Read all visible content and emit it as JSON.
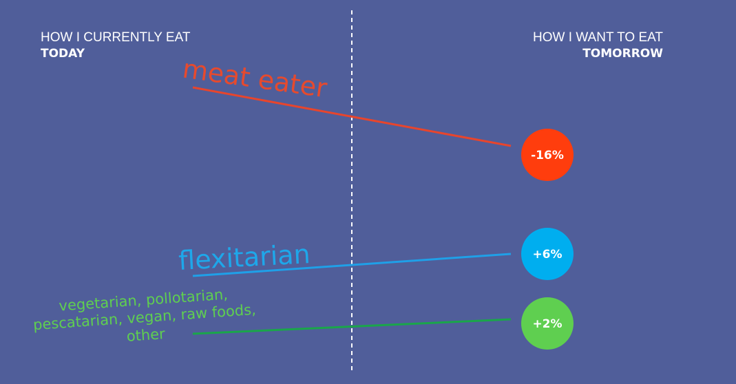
{
  "chart_data": {
    "type": "slope",
    "left_header": {
      "subtitle": "HOW I CURRENTLY EAT",
      "title": "TODAY"
    },
    "right_header": {
      "subtitle": "HOW I WANT TO EAT",
      "title": "TOMORROW"
    },
    "categories": [
      "meat eater",
      "flexitarian",
      "vegetarian, pollotarian, pescatarian, vegan, raw foods, other"
    ],
    "values": [
      -16,
      6,
      2
    ],
    "value_labels": [
      "-16%",
      "+6%",
      "+2%"
    ],
    "colors": [
      "#ff3d0d",
      "#00aeef",
      "#5fcf50"
    ]
  }
}
